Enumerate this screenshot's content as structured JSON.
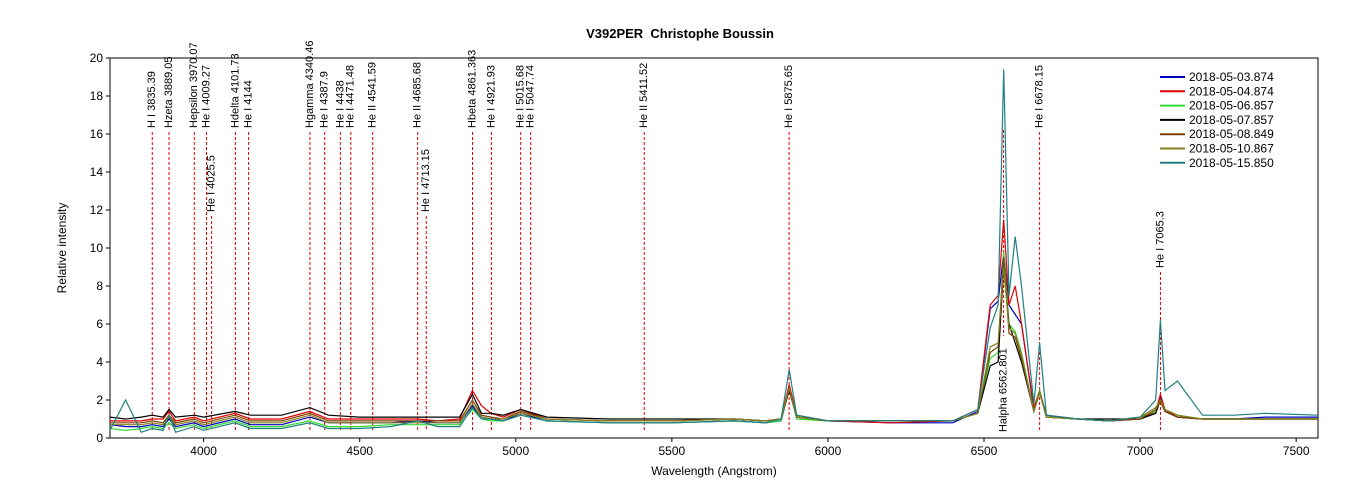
{
  "chart_data": {
    "type": "line",
    "title": "V392PER  Christophe Boussin",
    "xlabel": "Wavelength (Angstrom)",
    "ylabel": "Relative intensity",
    "xlim": [
      3700,
      7570
    ],
    "ylim": [
      0,
      20
    ],
    "xticks": [
      4000,
      4500,
      5000,
      5500,
      6000,
      6500,
      7000,
      7500
    ],
    "yticks": [
      0,
      2,
      4,
      6,
      8,
      10,
      12,
      14,
      16,
      18,
      20
    ],
    "legend": "upper right",
    "x": [
      3700,
      3750,
      3800,
      3835,
      3870,
      3889,
      3910,
      3970,
      4000,
      4100,
      4150,
      4250,
      4340,
      4400,
      4500,
      4600,
      4686,
      4750,
      4820,
      4861,
      4890,
      4921,
      4960,
      5016,
      5100,
      5300,
      5500,
      5700,
      5800,
      5850,
      5876,
      5900,
      6000,
      6200,
      6400,
      6480,
      6520,
      6545,
      6563,
      6580,
      6600,
      6620,
      6660,
      6678,
      6700,
      6800,
      6900,
      7000,
      7050,
      7065,
      7080,
      7120,
      7200,
      7300,
      7400,
      7570
    ],
    "series": [
      {
        "name": "2018-05-03.874",
        "color": "#0000c0",
        "values": [
          0.7,
          0.6,
          0.6,
          0.7,
          0.6,
          1.0,
          0.6,
          0.8,
          0.6,
          1.0,
          0.7,
          0.7,
          1.1,
          0.8,
          0.8,
          0.8,
          0.9,
          0.8,
          0.8,
          1.7,
          1.1,
          1.0,
          0.9,
          1.3,
          0.9,
          0.8,
          0.8,
          0.9,
          0.8,
          0.9,
          2.6,
          1.1,
          0.9,
          0.8,
          0.8,
          1.4,
          6.8,
          7.2,
          9.7,
          7.0,
          6.5,
          6.0,
          1.5,
          2.5,
          1.1,
          1.0,
          0.9,
          1.0,
          1.3,
          2.1,
          1.4,
          1.1,
          1.0,
          1.0,
          1.1,
          1.1
        ]
      },
      {
        "name": "2018-05-04.874",
        "color": "#e00000",
        "values": [
          0.9,
          0.9,
          0.9,
          1.0,
          1.0,
          1.4,
          0.9,
          1.1,
          0.9,
          1.3,
          1.0,
          1.0,
          1.4,
          1.0,
          1.0,
          1.0,
          1.0,
          0.9,
          1.0,
          2.5,
          1.7,
          1.3,
          1.1,
          1.5,
          1.0,
          0.9,
          0.9,
          1.0,
          0.9,
          1.0,
          2.8,
          1.2,
          0.9,
          0.8,
          0.9,
          1.5,
          7.0,
          7.5,
          11.5,
          7.0,
          8.0,
          6.0,
          1.6,
          2.5,
          1.1,
          1.0,
          0.9,
          1.0,
          1.4,
          2.3,
          1.5,
          1.1,
          1.0,
          1.0,
          1.0,
          1.0
        ]
      },
      {
        "name": "2018-05-06.857",
        "color": "#33dd33",
        "values": [
          0.5,
          0.4,
          0.5,
          0.6,
          0.5,
          0.8,
          0.5,
          0.7,
          0.5,
          0.9,
          0.6,
          0.6,
          0.9,
          0.6,
          0.6,
          0.7,
          0.7,
          0.7,
          0.7,
          1.5,
          1.0,
          0.9,
          0.9,
          1.2,
          0.9,
          0.8,
          0.8,
          0.9,
          0.8,
          0.9,
          2.6,
          1.0,
          0.9,
          0.9,
          0.9,
          1.3,
          4.2,
          4.5,
          9.8,
          6.0,
          5.6,
          4.5,
          1.4,
          2.5,
          1.1,
          1.0,
          0.9,
          1.1,
          1.4,
          2.0,
          1.5,
          1.2,
          1.0,
          1.0,
          1.0,
          1.0
        ]
      },
      {
        "name": "2018-05-07.857",
        "color": "#000000",
        "values": [
          1.1,
          1.0,
          1.1,
          1.2,
          1.1,
          1.5,
          1.1,
          1.2,
          1.1,
          1.4,
          1.2,
          1.2,
          1.6,
          1.2,
          1.1,
          1.1,
          1.1,
          1.1,
          1.1,
          2.3,
          1.3,
          1.3,
          1.2,
          1.5,
          1.1,
          1.0,
          1.0,
          1.0,
          0.9,
          1.0,
          2.5,
          1.1,
          0.9,
          0.9,
          0.9,
          1.3,
          3.8,
          4.0,
          9.0,
          6.0,
          5.0,
          4.0,
          1.4,
          2.4,
          1.2,
          1.0,
          1.0,
          1.0,
          1.3,
          2.0,
          1.4,
          1.1,
          1.0,
          1.0,
          1.0,
          1.0
        ]
      },
      {
        "name": "2018-05-08.849",
        "color": "#804000",
        "values": [
          0.8,
          0.8,
          0.8,
          0.9,
          0.8,
          1.2,
          0.8,
          1.0,
          0.8,
          1.2,
          0.9,
          0.9,
          1.3,
          0.9,
          0.9,
          0.9,
          0.9,
          0.9,
          0.9,
          2.0,
          1.2,
          1.1,
          1.0,
          1.4,
          1.0,
          0.9,
          0.9,
          1.0,
          0.9,
          1.0,
          2.6,
          1.1,
          0.9,
          0.9,
          0.9,
          1.3,
          4.5,
          4.8,
          9.5,
          5.5,
          5.3,
          4.2,
          1.4,
          2.4,
          1.1,
          1.0,
          0.9,
          1.0,
          1.5,
          1.9,
          1.4,
          1.1,
          1.0,
          1.0,
          1.0,
          1.0
        ]
      },
      {
        "name": "2018-05-10.867",
        "color": "#808020",
        "values": [
          0.7,
          0.7,
          0.7,
          0.8,
          0.7,
          1.1,
          0.7,
          0.9,
          0.7,
          1.1,
          0.8,
          0.8,
          1.2,
          0.8,
          0.8,
          0.8,
          0.8,
          0.8,
          0.8,
          1.8,
          1.1,
          1.0,
          1.0,
          1.3,
          1.0,
          0.9,
          0.9,
          1.0,
          0.9,
          1.0,
          2.6,
          1.1,
          0.9,
          0.9,
          0.9,
          1.3,
          4.8,
          5.0,
          9.0,
          5.8,
          5.5,
          4.4,
          1.4,
          2.4,
          1.1,
          1.0,
          0.9,
          1.1,
          1.6,
          2.0,
          1.5,
          1.2,
          1.0,
          1.0,
          1.0,
          1.0
        ]
      },
      {
        "name": "2018-05-15.850",
        "color": "#208080",
        "values": [
          0.4,
          2.0,
          0.3,
          0.5,
          0.4,
          1.2,
          0.3,
          0.6,
          0.4,
          0.8,
          0.5,
          0.5,
          0.8,
          0.5,
          0.5,
          0.6,
          0.9,
          0.6,
          0.6,
          1.6,
          1.0,
          1.0,
          0.9,
          1.2,
          0.9,
          0.8,
          0.8,
          0.9,
          0.8,
          1.0,
          3.6,
          1.2,
          0.9,
          0.9,
          0.9,
          1.5,
          5.8,
          7.0,
          19.4,
          7.5,
          10.6,
          8.0,
          1.8,
          5.0,
          1.2,
          1.0,
          0.9,
          1.1,
          2.0,
          6.2,
          2.5,
          3.0,
          1.2,
          1.2,
          1.3,
          1.2
        ]
      }
    ],
    "annotations": [
      {
        "label": "H I 3835.39",
        "x": 3835.39
      },
      {
        "label": "Hzeta 3889.05",
        "x": 3889.05
      },
      {
        "label": "Hepsilon 3970.07",
        "x": 3970.07
      },
      {
        "label": "He I 4009.27",
        "x": 4009.27
      },
      {
        "label": "He I 4025.5",
        "x": 4025.5
      },
      {
        "label": "Hdelta 4101.73",
        "x": 4101.73
      },
      {
        "label": "He I 4144",
        "x": 4144
      },
      {
        "label": "Hgamma 4340.46",
        "x": 4340.46
      },
      {
        "label": "He I 4387.9",
        "x": 4387.9
      },
      {
        "label": "He I 4438",
        "x": 4438
      },
      {
        "label": "He I 4471.48",
        "x": 4471.48
      },
      {
        "label": "He II 4541.59",
        "x": 4541.59
      },
      {
        "label": "He II 4685.68",
        "x": 4685.68
      },
      {
        "label": "He I 4713.15",
        "x": 4713.15
      },
      {
        "label": "Hbeta 4861.363",
        "x": 4861.363
      },
      {
        "label": "He I 4921.93",
        "x": 4921.93
      },
      {
        "label": "He I 5015.68",
        "x": 5015.68
      },
      {
        "label": "He I 5047.74",
        "x": 5047.74
      },
      {
        "label": "He II 5411.52",
        "x": 5411.52
      },
      {
        "label": "He I 5875.65",
        "x": 5875.65
      },
      {
        "label": "Halpha 6562.801",
        "x": 6562.801
      },
      {
        "label": "He I 6678.15",
        "x": 6678.15
      },
      {
        "label": "He I 7065.3",
        "x": 7065.3
      }
    ]
  }
}
